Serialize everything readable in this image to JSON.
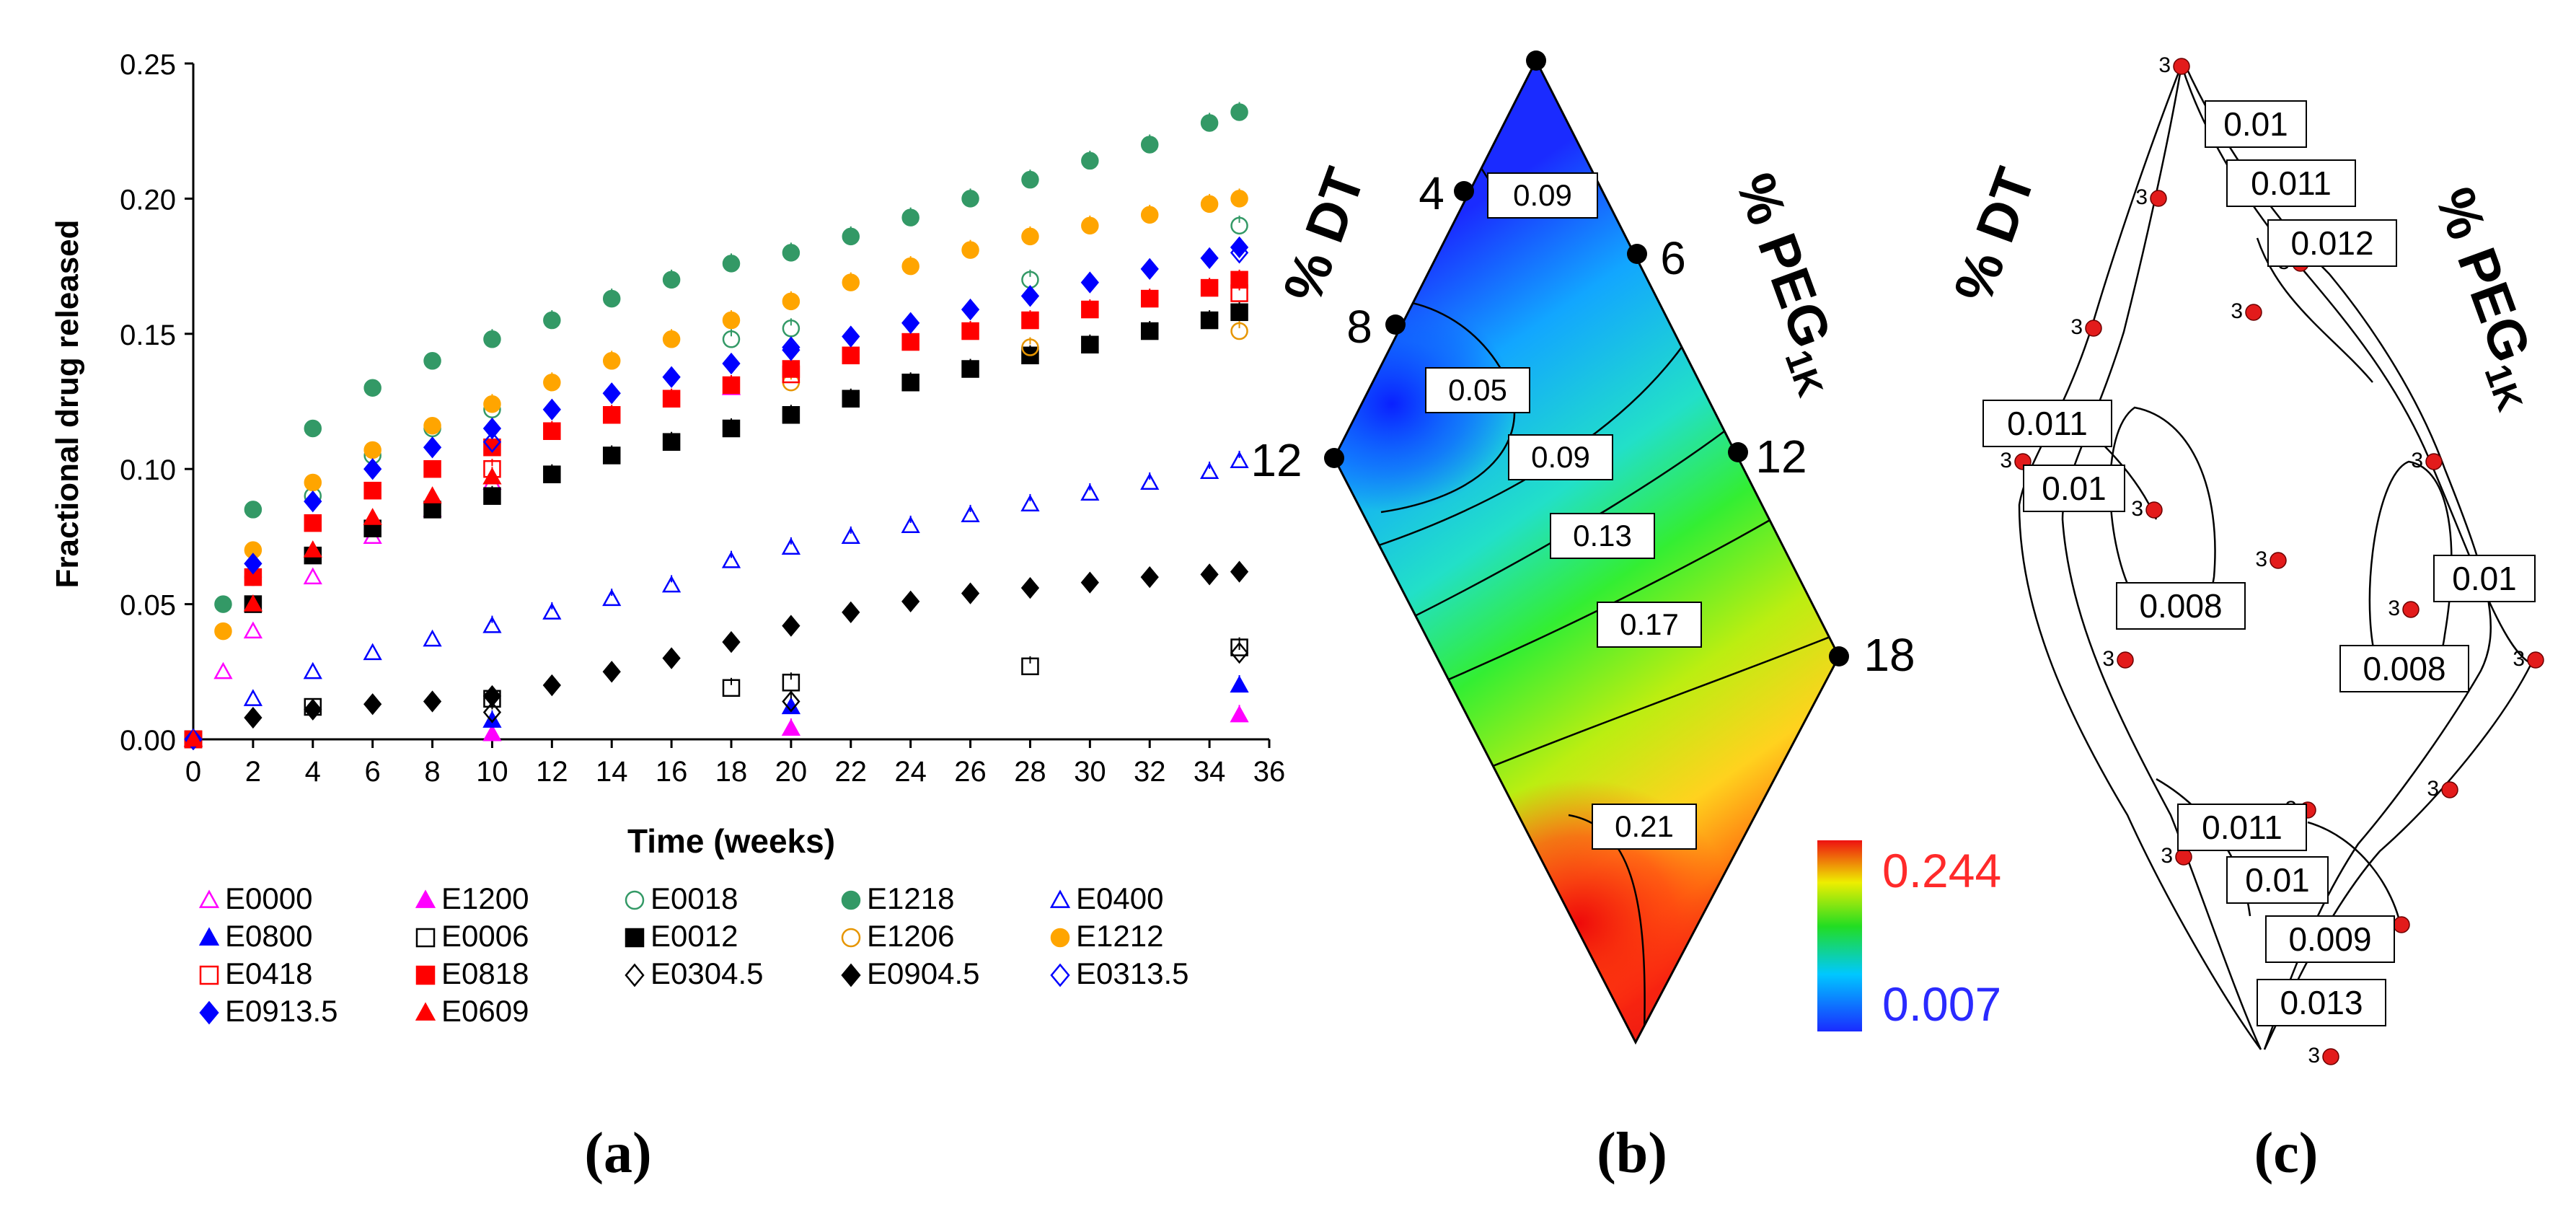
{
  "panel_labels": [
    "(a)",
    "(b)",
    "(c)"
  ],
  "chart_data": [
    {
      "type": "scatter",
      "panel": "(a)",
      "xlabel": "Time (weeks)",
      "ylabel": "Fractional drug released",
      "xlim": [
        0,
        36
      ],
      "ylim": [
        0,
        0.25
      ],
      "xticks": [
        "0",
        "2",
        "4",
        "6",
        "8",
        "10",
        "12",
        "14",
        "16",
        "18",
        "20",
        "22",
        "24",
        "26",
        "28",
        "30",
        "32",
        "34",
        "36"
      ],
      "yticks": [
        "0.00",
        "0.05",
        "0.10",
        "0.15",
        "0.20",
        "0.25"
      ],
      "error_bars": true,
      "legend_position": "bottom",
      "series": [
        {
          "name": "E0000",
          "marker": "triangle-open",
          "color": "#ff00ff",
          "values": {
            "x": [
              0,
              1,
              2,
              4,
              6,
              8,
              10,
              18
            ],
            "y": [
              0,
              0.025,
              0.04,
              0.06,
              0.075,
              0.085,
              0.095,
              0.13
            ]
          }
        },
        {
          "name": "E1200",
          "marker": "triangle-filled",
          "color": "#ff00ff",
          "values": {
            "x": [
              0,
              10,
              20,
              35
            ],
            "y": [
              0,
              0.002,
              0.004,
              0.009
            ]
          }
        },
        {
          "name": "E0018",
          "marker": "circle-open",
          "color": "#339966",
          "values": {
            "x": [
              0,
              2,
              4,
              6,
              8,
              10,
              18,
              20,
              28,
              35
            ],
            "y": [
              0,
              0.06,
              0.09,
              0.105,
              0.115,
              0.122,
              0.148,
              0.152,
              0.17,
              0.19
            ]
          }
        },
        {
          "name": "E1218",
          "marker": "circle-filled",
          "color": "#339966",
          "values": {
            "x": [
              0,
              1,
              2,
              4,
              6,
              8,
              10,
              12,
              14,
              16,
              18,
              20,
              22,
              24,
              26,
              28,
              30,
              32,
              34,
              35
            ],
            "y": [
              0,
              0.05,
              0.085,
              0.115,
              0.13,
              0.14,
              0.148,
              0.155,
              0.163,
              0.17,
              0.176,
              0.18,
              0.186,
              0.193,
              0.2,
              0.207,
              0.214,
              0.22,
              0.228,
              0.232
            ]
          }
        },
        {
          "name": "E0400",
          "marker": "triangle-open",
          "color": "#0000ff",
          "values": {
            "x": [
              0,
              2,
              4,
              6,
              8,
              10,
              12,
              14,
              16,
              18,
              20,
              22,
              24,
              26,
              28,
              30,
              32,
              34,
              35
            ],
            "y": [
              0,
              0.015,
              0.025,
              0.032,
              0.037,
              0.042,
              0.047,
              0.052,
              0.057,
              0.066,
              0.071,
              0.075,
              0.079,
              0.083,
              0.087,
              0.091,
              0.095,
              0.099,
              0.103
            ]
          }
        },
        {
          "name": "E0800",
          "marker": "triangle-filled",
          "color": "#0000ff",
          "values": {
            "x": [
              0,
              10,
              20,
              35
            ],
            "y": [
              0,
              0.007,
              0.012,
              0.02
            ]
          }
        },
        {
          "name": "E0006",
          "marker": "square-open",
          "color": "#000000",
          "values": {
            "x": [
              0,
              4,
              10,
              18,
              20,
              28,
              35
            ],
            "y": [
              0,
              0.012,
              0.015,
              0.019,
              0.021,
              0.027,
              0.034
            ]
          }
        },
        {
          "name": "E0012",
          "marker": "square-filled",
          "color": "#000000",
          "values": {
            "x": [
              0,
              2,
              4,
              6,
              8,
              10,
              12,
              14,
              16,
              18,
              20,
              22,
              24,
              26,
              28,
              30,
              32,
              34,
              35
            ],
            "y": [
              0,
              0.05,
              0.068,
              0.078,
              0.085,
              0.09,
              0.098,
              0.105,
              0.11,
              0.115,
              0.12,
              0.126,
              0.132,
              0.137,
              0.142,
              0.146,
              0.151,
              0.155,
              0.158
            ]
          }
        },
        {
          "name": "E1206",
          "marker": "circle-open",
          "color": "#e69500",
          "values": {
            "x": [
              0,
              20,
              28,
              35
            ],
            "y": [
              0,
              0.132,
              0.145,
              0.151
            ]
          }
        },
        {
          "name": "E1212",
          "marker": "circle-filled",
          "color": "#ffa500",
          "values": {
            "x": [
              0,
              1,
              2,
              4,
              6,
              8,
              10,
              12,
              14,
              16,
              18,
              20,
              22,
              24,
              26,
              28,
              30,
              32,
              34,
              35
            ],
            "y": [
              0,
              0.04,
              0.07,
              0.095,
              0.107,
              0.116,
              0.124,
              0.132,
              0.14,
              0.148,
              0.155,
              0.162,
              0.169,
              0.175,
              0.181,
              0.186,
              0.19,
              0.194,
              0.198,
              0.2
            ]
          }
        },
        {
          "name": "E0418",
          "marker": "square-open",
          "color": "#ff0000",
          "values": {
            "x": [
              0,
              10,
              20,
              35
            ],
            "y": [
              0,
              0.1,
              0.135,
              0.165
            ]
          }
        },
        {
          "name": "E0818",
          "marker": "square-filled",
          "color": "#ff0000",
          "values": {
            "x": [
              0,
              2,
              4,
              6,
              8,
              10,
              12,
              14,
              16,
              18,
              20,
              22,
              24,
              26,
              28,
              30,
              32,
              34,
              35
            ],
            "y": [
              0,
              0.06,
              0.08,
              0.092,
              0.1,
              0.108,
              0.114,
              0.12,
              0.126,
              0.131,
              0.137,
              0.142,
              0.147,
              0.151,
              0.155,
              0.159,
              0.163,
              0.167,
              0.17
            ]
          }
        },
        {
          "name": "E0304.5",
          "marker": "diamond-open",
          "color": "#000000",
          "values": {
            "x": [
              0,
              10,
              20,
              35
            ],
            "y": [
              0,
              0.01,
              0.014,
              0.032
            ]
          }
        },
        {
          "name": "E0904.5",
          "marker": "diamond-filled",
          "color": "#000000",
          "values": {
            "x": [
              0,
              2,
              4,
              6,
              8,
              10,
              12,
              14,
              16,
              18,
              20,
              22,
              24,
              26,
              28,
              30,
              32,
              34,
              35
            ],
            "y": [
              0,
              0.008,
              0.011,
              0.013,
              0.014,
              0.016,
              0.02,
              0.025,
              0.03,
              0.036,
              0.042,
              0.047,
              0.051,
              0.054,
              0.056,
              0.058,
              0.06,
              0.061,
              0.062
            ]
          }
        },
        {
          "name": "E0313.5",
          "marker": "diamond-open",
          "color": "#0000ff",
          "values": {
            "x": [
              0,
              10,
              20,
              35
            ],
            "y": [
              0,
              0.11,
              0.145,
              0.18
            ]
          }
        },
        {
          "name": "E0913.5",
          "marker": "diamond-filled",
          "color": "#0000ff",
          "values": {
            "x": [
              0,
              2,
              4,
              6,
              8,
              10,
              12,
              14,
              16,
              18,
              20,
              22,
              24,
              26,
              28,
              30,
              32,
              34,
              35
            ],
            "y": [
              0,
              0.065,
              0.088,
              0.1,
              0.108,
              0.115,
              0.122,
              0.128,
              0.134,
              0.139,
              0.144,
              0.149,
              0.154,
              0.159,
              0.164,
              0.169,
              0.174,
              0.178,
              0.182
            ]
          }
        },
        {
          "name": "E0609",
          "marker": "triangle-filled",
          "color": "#ff0000",
          "values": {
            "x": [
              0,
              2,
              4,
              6,
              8,
              10
            ],
            "y": [
              0,
              0.05,
              0.07,
              0.082,
              0.09,
              0.097
            ]
          }
        }
      ]
    },
    {
      "type": "heatmap",
      "panel": "(b)",
      "axis_labels": [
        "% DT",
        "% PEG",
        "1K"
      ],
      "dt_ticks": [
        "4",
        "8",
        "12"
      ],
      "peg_ticks": [
        "6",
        "12",
        "18"
      ],
      "contour_labels": [
        "0.09",
        "0.05",
        "0.09",
        "0.13",
        "0.17",
        "0.21"
      ],
      "colorbar": {
        "max": 0.244,
        "min": 0.007,
        "max_label": "0.244",
        "min_label": "0.007",
        "max_color": "#ff2a2a",
        "min_color": "#2a2aff"
      }
    },
    {
      "type": "heatmap",
      "panel": "(c)",
      "axis_labels": [
        "% DT",
        "% PEG",
        "1K"
      ],
      "design_point_label": "3",
      "contour_labels": [
        "0.01",
        "0.011",
        "0.012",
        "0.011",
        "0.01",
        "0.008",
        "0.01",
        "0.008",
        "0.011",
        "0.01",
        "0.009",
        "0.013"
      ]
    }
  ]
}
